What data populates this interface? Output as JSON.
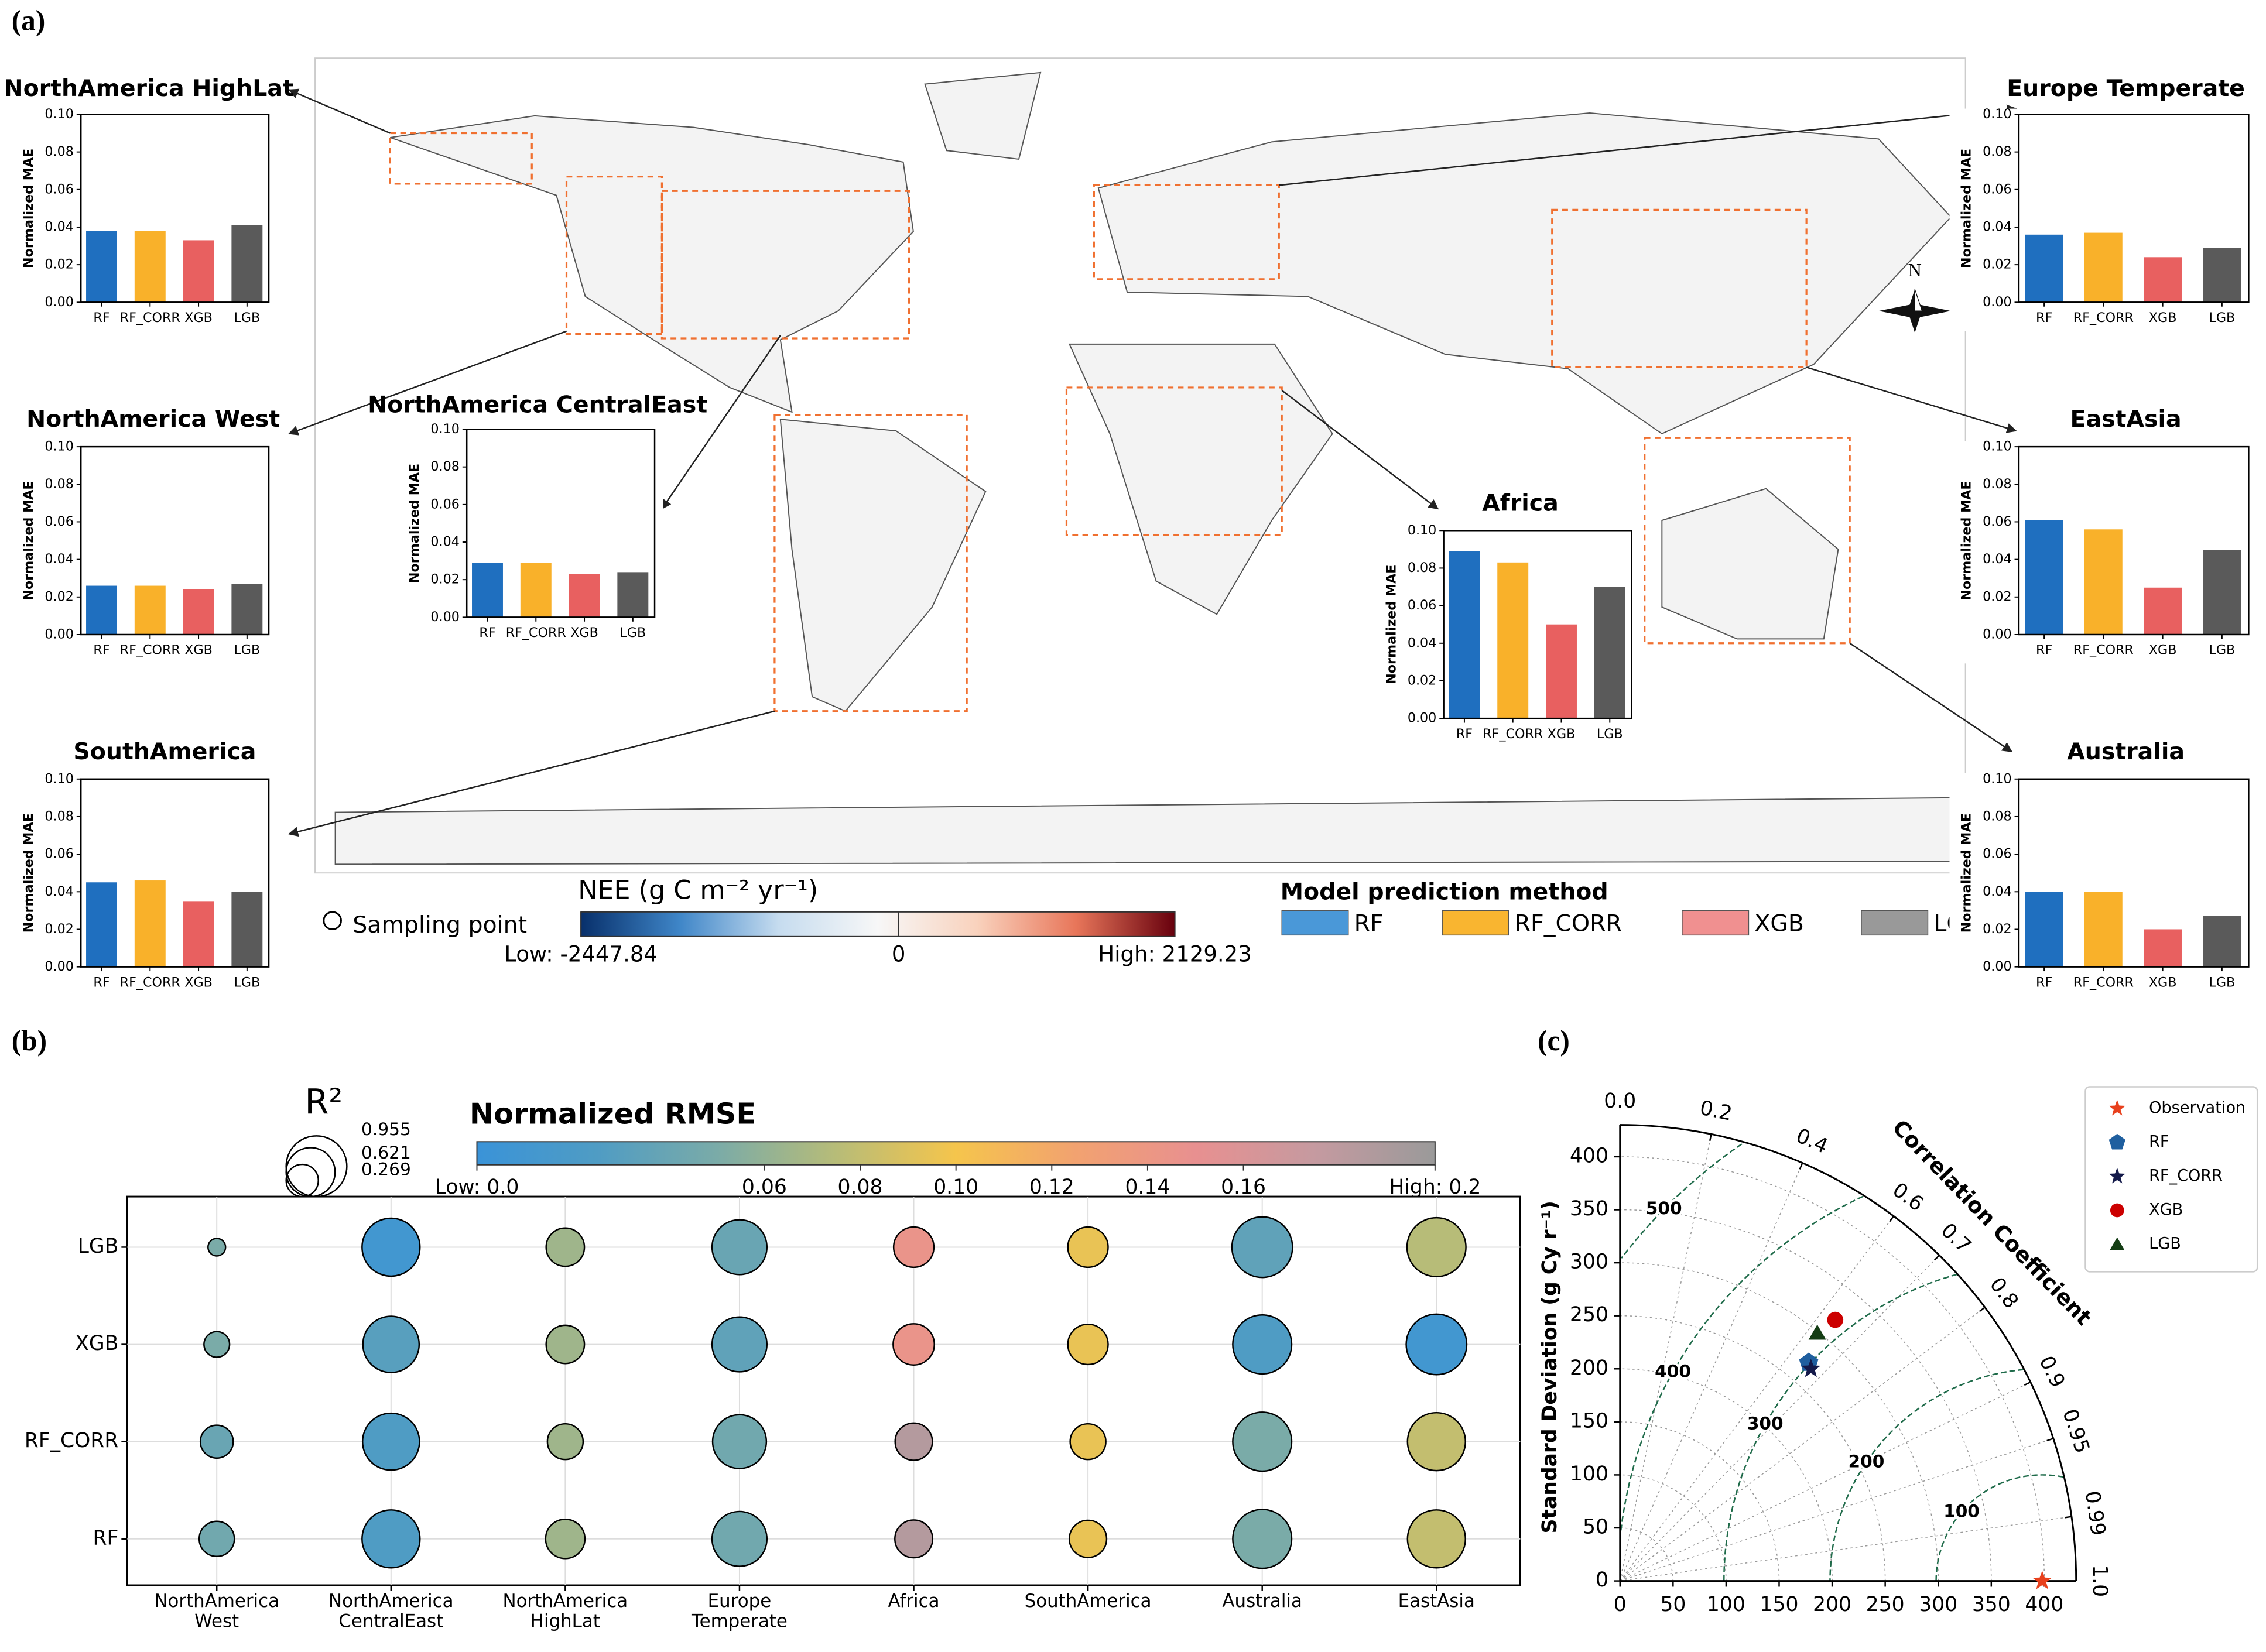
{
  "panel_labels": [
    "(a)",
    "(b)",
    "(c)"
  ],
  "chart_data": [
    {
      "type": "map",
      "colorbar_title": "NEE (g C m⁻² yr⁻¹)",
      "colorbar_lim": [
        -2447.84,
        2129.23
      ],
      "colorbar_ticks": [
        {
          "value": -2447.84,
          "label": "Low: -2447.84"
        },
        0,
        {
          "value": 2129.23,
          "label": "High: 2129.23"
        }
      ],
      "colorbar_colors": [
        "#08306b",
        "#3f86c8",
        "#c6dcef",
        "#f7f7f7",
        "#f9d2bd",
        "#e8765a",
        "#67000d"
      ],
      "sampling_label": "Sampling point",
      "legend_title": "Model prediction method",
      "legend": [
        {
          "name": "RF",
          "color": "#4a98d8"
        },
        {
          "name": "RF_CORR",
          "color": "#f9b530"
        },
        {
          "name": "XGB",
          "color": "#f09090"
        },
        {
          "name": "LGB",
          "color": "#999999"
        }
      ],
      "compass": "N"
    },
    {
      "type": "bar",
      "title": "NorthAmerica HighLat",
      "ylabel": "Normalized MAE",
      "categories": [
        "RF",
        "RF_CORR",
        "XGB",
        "LGB"
      ],
      "values": [
        0.038,
        0.038,
        0.033,
        0.041
      ],
      "colors": [
        "#1f6fbf",
        "#f9b12a",
        "#e86060",
        "#5a5a5a"
      ],
      "ylim": [
        0,
        0.1
      ],
      "yticks": [
        {
          "value": 0,
          "label": "0.00"
        },
        0.02,
        0.04,
        0.06,
        0.08,
        {
          "value": 0.1,
          "label": "0.10"
        }
      ]
    },
    {
      "type": "bar",
      "title": "NorthAmerica West",
      "ylabel": "Normalized MAE",
      "categories": [
        "RF",
        "RF_CORR",
        "XGB",
        "LGB"
      ],
      "values": [
        0.026,
        0.026,
        0.024,
        0.027
      ],
      "colors": [
        "#1f6fbf",
        "#f9b12a",
        "#e86060",
        "#5a5a5a"
      ],
      "ylim": [
        0,
        0.1
      ],
      "yticks": [
        {
          "value": 0,
          "label": "0.00"
        },
        0.02,
        0.04,
        0.06,
        0.08,
        {
          "value": 0.1,
          "label": "0.10"
        }
      ]
    },
    {
      "type": "bar",
      "title": "SouthAmerica",
      "ylabel": "Normalized MAE",
      "categories": [
        "RF",
        "RF_CORR",
        "XGB",
        "LGB"
      ],
      "values": [
        0.045,
        0.046,
        0.035,
        0.04
      ],
      "colors": [
        "#1f6fbf",
        "#f9b12a",
        "#e86060",
        "#5a5a5a"
      ],
      "ylim": [
        0,
        0.1
      ],
      "yticks": [
        {
          "value": 0,
          "label": "0.00"
        },
        0.02,
        0.04,
        0.06,
        0.08,
        {
          "value": 0.1,
          "label": "0.10"
        }
      ]
    },
    {
      "type": "bar",
      "title": "NorthAmerica CentralEast",
      "ylabel": "Normalized MAE",
      "categories": [
        "RF",
        "RF_CORR",
        "XGB",
        "LGB"
      ],
      "values": [
        0.029,
        0.029,
        0.023,
        0.024
      ],
      "colors": [
        "#1f6fbf",
        "#f9b12a",
        "#e86060",
        "#5a5a5a"
      ],
      "ylim": [
        0,
        0.1
      ],
      "yticks": [
        {
          "value": 0,
          "label": "0.00"
        },
        0.02,
        0.04,
        0.06,
        0.08,
        {
          "value": 0.1,
          "label": "0.10"
        }
      ]
    },
    {
      "type": "bar",
      "title": "Africa",
      "ylabel": "Normalized MAE",
      "categories": [
        "RF",
        "RF_CORR",
        "XGB",
        "LGB"
      ],
      "values": [
        0.089,
        0.083,
        0.05,
        0.07
      ],
      "colors": [
        "#1f6fbf",
        "#f9b12a",
        "#e86060",
        "#5a5a5a"
      ],
      "ylim": [
        0,
        0.1
      ],
      "yticks": [
        {
          "value": 0,
          "label": "0.00"
        },
        0.02,
        0.04,
        0.06,
        0.08,
        {
          "value": 0.1,
          "label": "0.10"
        }
      ]
    },
    {
      "type": "bar",
      "title": "Europe Temperate",
      "ylabel": "Normalized MAE",
      "categories": [
        "RF",
        "RF_CORR",
        "XGB",
        "LGB"
      ],
      "values": [
        0.036,
        0.037,
        0.024,
        0.029
      ],
      "colors": [
        "#1f6fbf",
        "#f9b12a",
        "#e86060",
        "#5a5a5a"
      ],
      "ylim": [
        0,
        0.1
      ],
      "yticks": [
        {
          "value": 0,
          "label": "0.00"
        },
        0.02,
        0.04,
        0.06,
        0.08,
        {
          "value": 0.1,
          "label": "0.10"
        }
      ]
    },
    {
      "type": "bar",
      "title": "EastAsia",
      "ylabel": "Normalized MAE",
      "categories": [
        "RF",
        "RF_CORR",
        "XGB",
        "LGB"
      ],
      "values": [
        0.061,
        0.056,
        0.025,
        0.045
      ],
      "colors": [
        "#1f6fbf",
        "#f9b12a",
        "#e86060",
        "#5a5a5a"
      ],
      "ylim": [
        0,
        0.1
      ],
      "yticks": [
        {
          "value": 0,
          "label": "0.00"
        },
        0.02,
        0.04,
        0.06,
        0.08,
        {
          "value": 0.1,
          "label": "0.10"
        }
      ]
    },
    {
      "type": "bar",
      "title": "Australia",
      "ylabel": "Normalized MAE",
      "categories": [
        "RF",
        "RF_CORR",
        "XGB",
        "LGB"
      ],
      "values": [
        0.04,
        0.04,
        0.02,
        0.027
      ],
      "colors": [
        "#1f6fbf",
        "#f9b12a",
        "#e86060",
        "#5a5a5a"
      ],
      "ylim": [
        0,
        0.1
      ],
      "yticks": [
        {
          "value": 0,
          "label": "0.00"
        },
        0.02,
        0.04,
        0.06,
        0.08,
        {
          "value": 0.1,
          "label": "0.10"
        }
      ]
    },
    {
      "type": "bubble",
      "title": "Normalized RMSE",
      "size_title": "R²",
      "size_legend": [
        0.955,
        0.621,
        0.269
      ],
      "categories": [
        "NorthAmerica West",
        "NorthAmerica CentralEast",
        "NorthAmerica HighLat",
        "Europe Temperate",
        "Africa",
        "SouthAmerica",
        "Australia",
        "EastAsia"
      ],
      "series": [
        {
          "name": "LGB",
          "r2": [
            0.08,
            0.87,
            0.38,
            0.78,
            0.42,
            0.42,
            0.95,
            0.9
          ],
          "nrmse": [
            0.05,
            0.01,
            0.065,
            0.04,
            0.145,
            0.095,
            0.035,
            0.075
          ]
        },
        {
          "name": "XGB",
          "r2": [
            0.17,
            0.82,
            0.38,
            0.78,
            0.44,
            0.42,
            0.9,
            0.95
          ],
          "nrmse": [
            0.05,
            0.03,
            0.065,
            0.035,
            0.145,
            0.095,
            0.025,
            0.01
          ]
        },
        {
          "name": "RF_CORR",
          "r2": [
            0.28,
            0.84,
            0.33,
            0.75,
            0.36,
            0.33,
            0.9,
            0.87
          ],
          "nrmse": [
            0.04,
            0.025,
            0.065,
            0.045,
            0.185,
            0.095,
            0.05,
            0.08
          ]
        },
        {
          "name": "RF",
          "r2": [
            0.32,
            0.87,
            0.4,
            0.78,
            0.37,
            0.36,
            0.9,
            0.87
          ],
          "nrmse": [
            0.045,
            0.025,
            0.065,
            0.045,
            0.185,
            0.095,
            0.05,
            0.08
          ]
        }
      ],
      "colorbar_lim": [
        0,
        0.2
      ],
      "colorbar_ticks": [
        {
          "value": 0,
          "label": "Low: 0.0"
        },
        0.06,
        0.08,
        {
          "value": 0.1,
          "label": "0.10"
        },
        0.12,
        0.14,
        0.16,
        {
          "value": 0.2,
          "label": "High: 0.2"
        }
      ],
      "colormap": [
        "#3a93d8",
        "#4f9cc4",
        "#7aaba8",
        "#b7bc78",
        "#f5c54c",
        "#f2a270",
        "#e89090",
        "#c59aa0",
        "#9a9a9a"
      ],
      "grid": true
    },
    {
      "type": "taylor",
      "ylabel": "Standard Deviation (g Cy r⁻¹)",
      "corr_label": "Correlation Coefficient",
      "rlim": [
        0,
        430
      ],
      "xticks": [
        0,
        50,
        100,
        150,
        200,
        250,
        300,
        350,
        400
      ],
      "yticks": [
        0,
        50,
        100,
        150,
        200,
        250,
        300,
        350,
        400
      ],
      "corr_ticks": [
        {
          "value": 0,
          "label": "0.0"
        },
        0.2,
        0.4,
        0.6,
        0.7,
        0.8,
        0.9,
        0.95,
        0.99,
        {
          "value": 1,
          "label": "1.0"
        }
      ],
      "rms_contours": [
        100,
        200,
        300,
        400,
        500
      ],
      "series": [
        {
          "name": "Observation",
          "color": "#e8401c",
          "marker": "star",
          "std": 398,
          "correlation": 1
        },
        {
          "name": "RF",
          "color": "#1f5f9f",
          "marker": "pentagon",
          "std": 272,
          "correlation": 0.654
        },
        {
          "name": "RF_CORR",
          "color": "#141a4a",
          "marker": "star",
          "std": 269,
          "correlation": 0.669
        },
        {
          "name": "XGB",
          "color": "#cc0000",
          "marker": "circle",
          "std": 319,
          "correlation": 0.636
        },
        {
          "name": "LGB",
          "color": "#143d14",
          "marker": "triangle",
          "std": 299,
          "correlation": 0.622
        }
      ]
    }
  ]
}
